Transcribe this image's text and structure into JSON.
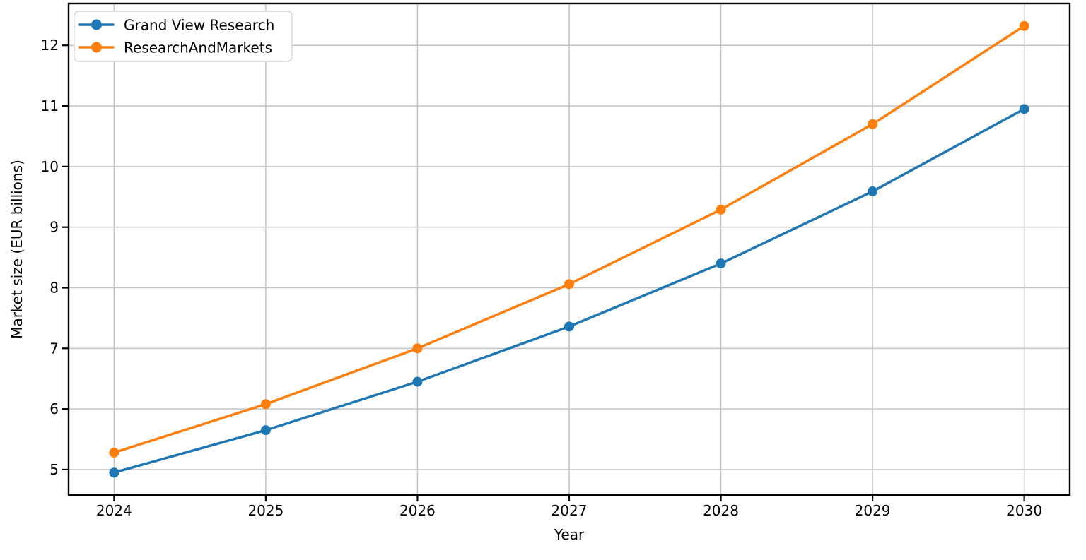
{
  "chart_data": {
    "type": "line",
    "title": "",
    "xlabel": "Year",
    "ylabel": "Market size (EUR billions)",
    "categories": [
      2024,
      2025,
      2026,
      2027,
      2028,
      2029,
      2030
    ],
    "series": [
      {
        "name": "Grand View Research",
        "color": "#1f77b4",
        "marker": "circle",
        "values": [
          4.95,
          5.65,
          6.45,
          7.36,
          8.4,
          9.59,
          10.95
        ]
      },
      {
        "name": "ResearchAndMarkets",
        "color": "#ff7f0e",
        "marker": "circle",
        "values": [
          5.28,
          6.08,
          7.0,
          8.06,
          9.29,
          10.7,
          12.32
        ]
      }
    ],
    "yticks": [
      5,
      6,
      7,
      8,
      9,
      10,
      11,
      12
    ],
    "xlim": [
      2023.7,
      2030.3
    ],
    "ylim": [
      4.58,
      12.69
    ],
    "grid": true,
    "legend_position": "upper left",
    "style": {
      "background_color": "#ffffff",
      "grid_color": "#c2c2c2",
      "spine_color": "#000000",
      "tick_color": "#000000",
      "text_color": "#000000",
      "legend_border_color": "#d5d5d5",
      "legend_background": "#ffffff"
    }
  }
}
